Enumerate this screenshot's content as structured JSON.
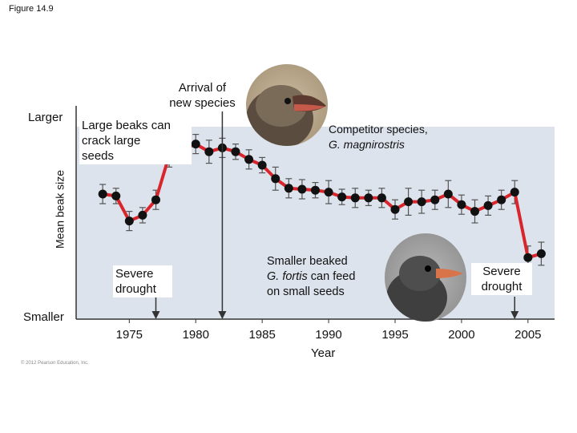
{
  "figure_label": "Figure 14.9",
  "copyright": "© 2012 Pearson Education, Inc.",
  "colors": {
    "line": "#d9262c",
    "point": "#111111",
    "plot_bg": "#dde3ec",
    "error_bar": "#555555"
  },
  "chart_data": {
    "type": "line",
    "title": "",
    "xlabel": "Year",
    "ylabel": "Mean beak size",
    "xlim": [
      1971,
      2007
    ],
    "ylim": [
      0,
      10
    ],
    "x_ticks": [
      "1975",
      "1980",
      "1985",
      "1990",
      "1995",
      "2000",
      "2005"
    ],
    "y_labels": {
      "top": "Larger",
      "bottom": "Smaller"
    },
    "grid": false,
    "series": [
      {
        "name": "",
        "x": [
          1973,
          1974,
          1975,
          1976,
          1977,
          1978,
          1979,
          1980,
          1981,
          1982,
          1983,
          1984,
          1985,
          1986,
          1987,
          1988,
          1989,
          1990,
          1991,
          1992,
          1993,
          1994,
          1995,
          1996,
          1997,
          1998,
          1999,
          2000,
          2001,
          2002,
          2003,
          2004,
          2005,
          2006
        ],
        "y": [
          6.5,
          6.4,
          5.1,
          5.4,
          6.2,
          8.5,
          8.8,
          9.1,
          8.7,
          8.9,
          8.7,
          8.3,
          8.0,
          7.3,
          6.8,
          6.75,
          6.7,
          6.6,
          6.35,
          6.3,
          6.3,
          6.3,
          5.7,
          6.1,
          6.1,
          6.2,
          6.5,
          5.95,
          5.6,
          5.9,
          6.2,
          6.6,
          3.2,
          3.4
        ],
        "err": [
          0.5,
          0.4,
          0.5,
          0.4,
          0.5,
          0.6,
          0.5,
          0.5,
          0.6,
          0.5,
          0.4,
          0.5,
          0.4,
          0.6,
          0.5,
          0.5,
          0.4,
          0.6,
          0.4,
          0.5,
          0.4,
          0.5,
          0.5,
          0.7,
          0.6,
          0.5,
          0.7,
          0.5,
          0.6,
          0.5,
          0.5,
          0.6,
          0.6,
          0.6
        ]
      }
    ],
    "annotations": [
      {
        "id": "large_beaks",
        "lines": [
          "Large beaks can",
          "crack large",
          "seeds"
        ]
      },
      {
        "id": "arrival",
        "lines": [
          "Arrival of",
          "new species"
        ],
        "year": 1982
      },
      {
        "id": "competitor",
        "lines": [
          "Competitor species,",
          "G. magnirostris"
        ]
      },
      {
        "id": "drought1",
        "lines": [
          "Severe",
          "drought"
        ],
        "year": 1977
      },
      {
        "id": "smaller_fortis",
        "lines": [
          "Smaller beaked",
          "G. fortis can feed",
          "on small seeds"
        ]
      },
      {
        "id": "drought2",
        "lines": [
          "Severe",
          "drought"
        ],
        "year": 2004
      }
    ]
  }
}
